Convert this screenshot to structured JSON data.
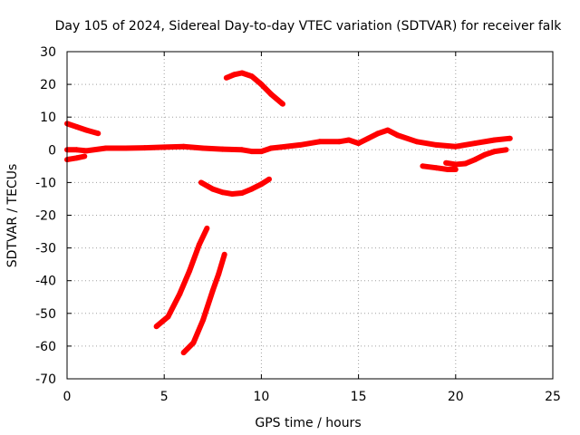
{
  "chart_data": {
    "type": "line",
    "title": "Day 105 of 2024, Sidereal Day-to-day VTEC variation (SDTVAR) for receiver falk",
    "xlabel": "GPS time / hours",
    "ylabel": "SDTVAR / TECUs",
    "xlim": [
      0,
      25
    ],
    "ylim": [
      -70,
      30
    ],
    "xticks": [
      0,
      5,
      10,
      15,
      20,
      25
    ],
    "yticks": [
      -70,
      -60,
      -50,
      -40,
      -30,
      -20,
      -10,
      0,
      10,
      20,
      30
    ],
    "grid": true,
    "color": "#ff0000",
    "series": [
      {
        "name": "main",
        "x": [
          0,
          0.5,
          1,
          2,
          3,
          4,
          5,
          6,
          7,
          8,
          9,
          9.5,
          10,
          10.5,
          11,
          12,
          13,
          14,
          14.5,
          15,
          15.5,
          16,
          16.5,
          17,
          18,
          19,
          20,
          21,
          22,
          22.8
        ],
        "y": [
          0,
          0,
          -0.3,
          0.5,
          0.5,
          0.6,
          0.8,
          1,
          0.5,
          0.2,
          0,
          -0.5,
          -0.5,
          0.5,
          0.8,
          1.5,
          2.5,
          2.5,
          3,
          2,
          3.5,
          5,
          6,
          4.5,
          2.5,
          1.5,
          1,
          2,
          3,
          3.5
        ]
      },
      {
        "name": "early-positive",
        "x": [
          0,
          0.5,
          1,
          1.6
        ],
        "y": [
          8,
          7,
          6,
          5
        ]
      },
      {
        "name": "early-negative",
        "x": [
          0,
          0.5,
          0.9
        ],
        "y": [
          -3,
          -2.5,
          -2
        ]
      },
      {
        "name": "arc-high",
        "x": [
          8.2,
          8.6,
          9,
          9.5,
          10,
          10.5,
          11.1
        ],
        "y": [
          22,
          23,
          23.5,
          22.5,
          20,
          17,
          14
        ]
      },
      {
        "name": "arc-low",
        "x": [
          6.9,
          7.5,
          8,
          8.5,
          9,
          9.5,
          10,
          10.4
        ],
        "y": [
          -10,
          -12,
          -13,
          -13.5,
          -13.2,
          -12,
          -10.5,
          -9
        ]
      },
      {
        "name": "steep-1",
        "x": [
          4.6,
          5.2,
          5.8,
          6.3,
          6.8,
          7.2
        ],
        "y": [
          -54,
          -51,
          -44,
          -37,
          -29,
          -24
        ]
      },
      {
        "name": "steep-2",
        "x": [
          6,
          6.5,
          7,
          7.5,
          7.8,
          8.1
        ],
        "y": [
          -62,
          -59,
          -52,
          -43,
          -38,
          -32
        ]
      },
      {
        "name": "late-tail-1",
        "x": [
          18.3,
          19,
          19.6,
          20
        ],
        "y": [
          -5,
          -5.5,
          -6,
          -6
        ]
      },
      {
        "name": "late-tail-2",
        "x": [
          19.5,
          20,
          20.5,
          21,
          21.5,
          22,
          22.6
        ],
        "y": [
          -4,
          -4.5,
          -4.2,
          -3,
          -1.5,
          -0.5,
          0
        ]
      }
    ]
  }
}
